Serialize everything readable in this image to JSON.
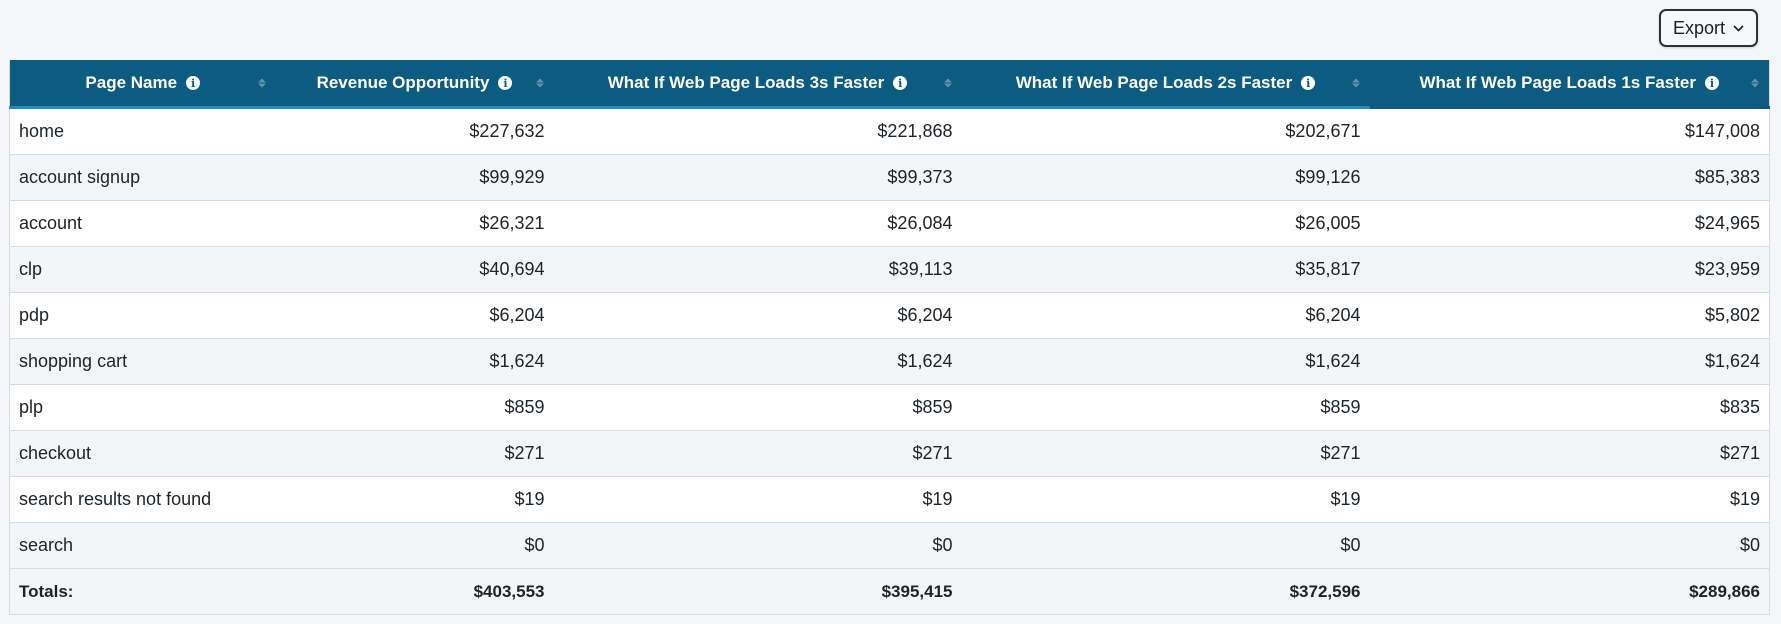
{
  "toolbar": {
    "export_label": "Export"
  },
  "table": {
    "headers": [
      "Page Name",
      "Revenue Opportunity",
      "What If Web Page Loads 3s Faster",
      "What If Web Page Loads 2s Faster",
      "What If Web Page Loads 1s Faster"
    ],
    "rows": [
      [
        "home",
        "$227,632",
        "$221,868",
        "$202,671",
        "$147,008"
      ],
      [
        "account signup",
        "$99,929",
        "$99,373",
        "$99,126",
        "$85,383"
      ],
      [
        "account",
        "$26,321",
        "$26,084",
        "$26,005",
        "$24,965"
      ],
      [
        "clp",
        "$40,694",
        "$39,113",
        "$35,817",
        "$23,959"
      ],
      [
        "pdp",
        "$6,204",
        "$6,204",
        "$6,204",
        "$5,802"
      ],
      [
        "shopping cart",
        "$1,624",
        "$1,624",
        "$1,624",
        "$1,624"
      ],
      [
        "plp",
        "$859",
        "$859",
        "$859",
        "$835"
      ],
      [
        "checkout",
        "$271",
        "$271",
        "$271",
        "$271"
      ],
      [
        "search results not found",
        "$19",
        "$19",
        "$19",
        "$19"
      ],
      [
        "search",
        "$0",
        "$0",
        "$0",
        "$0"
      ]
    ],
    "totals": [
      "Totals:",
      "$403,553",
      "$395,415",
      "$372,596",
      "$289,866"
    ]
  },
  "colors": {
    "header_bg": "#0c5b80",
    "header_accent": "#2a88c4",
    "page_bg": "#f5f6f9"
  },
  "icons": {
    "header_info": "info-icon",
    "header_sort": "sort-icon",
    "export_chevron": "chevron-down-icon"
  }
}
